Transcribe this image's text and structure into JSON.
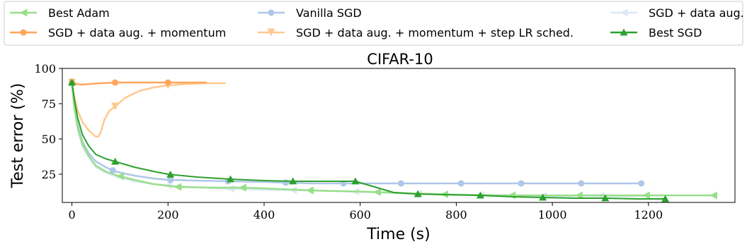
{
  "chart_data": {
    "type": "line",
    "title": "CIFAR-10",
    "xlabel": "Time (s)",
    "ylabel": "Test error (%)",
    "xlim": [
      -20,
      1380
    ],
    "ylim": [
      5,
      100
    ],
    "xticks": [
      0,
      200,
      400,
      600,
      800,
      1000,
      1200
    ],
    "yticks": [
      25,
      50,
      75,
      100
    ],
    "grid": false,
    "legend_position": "top (above plot, 3 columns)",
    "series": [
      {
        "name": "Best Adam",
        "color": "#98df8a",
        "marker": "triangle-left",
        "x": [
          0,
          5,
          12,
          22,
          35,
          50,
          70,
          95,
          130,
          170,
          220,
          290,
          360,
          430,
          500,
          560,
          620,
          700,
          800,
          900,
          1000,
          1100,
          1200,
          1300,
          1335
        ],
        "y": [
          89,
          72,
          58,
          46,
          38,
          31,
          27,
          24,
          21,
          18,
          16,
          15.5,
          15.5,
          14.5,
          13.5,
          13,
          12.5,
          11.5,
          10.5,
          10,
          10,
          10,
          10,
          10,
          10
        ],
        "markers_x": [
          100,
          220,
          355,
          495,
          635,
          775,
          915,
          1055,
          1195,
          1335
        ]
      },
      {
        "name": "Vanilla SGD",
        "color": "#aec7e8",
        "marker": "circle",
        "x": [
          0,
          5,
          12,
          22,
          35,
          50,
          70,
          90,
          130,
          170,
          200,
          260,
          330,
          400,
          450,
          500,
          550,
          600,
          700,
          800,
          900,
          1000,
          1100,
          1185
        ],
        "y": [
          89,
          75,
          60,
          48,
          40,
          34,
          30,
          27,
          24,
          22,
          21,
          20.5,
          20,
          19.5,
          19,
          18.5,
          18.5,
          18.5,
          18.5,
          18.5,
          18.5,
          18.5,
          18.5,
          18.5
        ],
        "markers_x": [
          85,
          205,
          325,
          445,
          565,
          685,
          810,
          935,
          1060,
          1185
        ]
      },
      {
        "name": "SGD + data aug.",
        "color": "#dce6f5",
        "marker": "triangle-left",
        "x": [
          0,
          5,
          12,
          22,
          35,
          50,
          70,
          95,
          130,
          170,
          220,
          300,
          400,
          500,
          600,
          700,
          800,
          900,
          1000,
          1100,
          1190
        ],
        "y": [
          89,
          72,
          57,
          45,
          37,
          30,
          26,
          23,
          20,
          18,
          16.5,
          15,
          14,
          13.5,
          12.5,
          11.5,
          10.5,
          10,
          9.5,
          9.5,
          9.5
        ],
        "markers_x": [
          200,
          330,
          460,
          590,
          720,
          850,
          980,
          1100
        ]
      },
      {
        "name": "SGD + data aug. + momentum",
        "color": "#ffa65a",
        "marker": "circle",
        "x": [
          0,
          10,
          20,
          40,
          60,
          90,
          120,
          150,
          200,
          250,
          280
        ],
        "y": [
          90,
          89,
          88.5,
          89,
          89.5,
          90,
          90,
          90,
          90,
          90,
          90
        ],
        "markers_x": [
          0,
          90,
          200
        ]
      },
      {
        "name": "SGD + data aug. + momentum + step LR sched.",
        "color": "#ffc890",
        "marker": "triangle-down",
        "x": [
          0,
          5,
          12,
          22,
          35,
          48,
          55,
          60,
          68,
          78,
          90,
          110,
          140,
          170,
          200,
          240,
          280,
          320
        ],
        "y": [
          90,
          80,
          70,
          62,
          56,
          52,
          51.5,
          55,
          64,
          70,
          73,
          79,
          84,
          86.5,
          88,
          89,
          89.5,
          89.5
        ],
        "markers_x": [
          0,
          90,
          200
        ]
      },
      {
        "name": "Best SGD",
        "color": "#2ca02c",
        "marker": "triangle-up",
        "x": [
          0,
          5,
          12,
          22,
          35,
          50,
          70,
          90,
          130,
          170,
          200,
          260,
          330,
          400,
          460,
          530,
          590,
          630,
          670,
          715,
          780,
          850,
          920,
          980,
          1050,
          1110,
          1180,
          1235
        ],
        "y": [
          90,
          78,
          65,
          53,
          45,
          39,
          36,
          34,
          30,
          27,
          25,
          23,
          21.5,
          20.5,
          20,
          20,
          20,
          16,
          12,
          11,
          10.5,
          10,
          9,
          8.5,
          8,
          8,
          7.5,
          7.5
        ],
        "markers_x": [
          0,
          90,
          205,
          330,
          460,
          590,
          720,
          850,
          980,
          1110,
          1235
        ]
      }
    ]
  }
}
